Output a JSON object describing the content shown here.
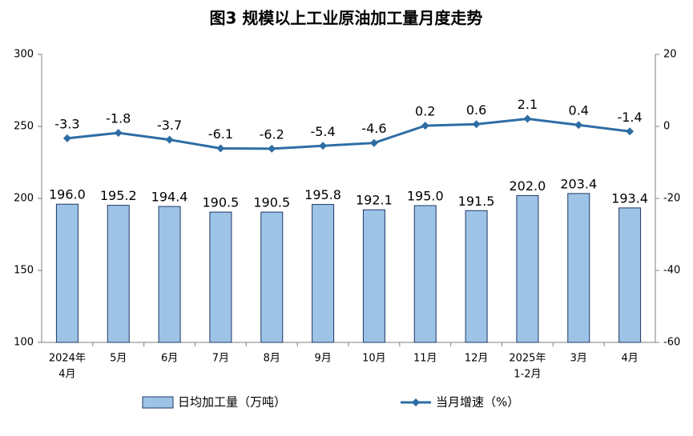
{
  "chart_data": {
    "type": "bar-line",
    "title": "图3  规模以上工业原油加工量月度走势",
    "categories": [
      [
        "2024年",
        "4月"
      ],
      "5月",
      "6月",
      "7月",
      "8月",
      "9月",
      "10月",
      "11月",
      "12月",
      [
        "2025年",
        "1-2月"
      ],
      "3月",
      "4月"
    ],
    "series": [
      {
        "name": "日均加工量（万吨）",
        "type": "bar",
        "color": "#9dc3e6",
        "edge": "#1f3864",
        "values": [
          196.0,
          195.2,
          194.4,
          190.5,
          190.5,
          195.8,
          192.1,
          195.0,
          191.5,
          202.0,
          203.4,
          193.4
        ],
        "value_labels": [
          "196.0",
          "195.2",
          "194.4",
          "190.5",
          "190.5",
          "195.8",
          "192.1",
          "195.0",
          "191.5",
          "202.0",
          "203.4",
          "193.4"
        ]
      },
      {
        "name": "当月增速（%）",
        "type": "line",
        "axis": "y2",
        "color": "#2e6da4",
        "values": [
          -3.3,
          -1.8,
          -3.7,
          -6.1,
          -6.2,
          -5.4,
          -4.6,
          0.2,
          0.6,
          2.1,
          0.4,
          -1.4
        ]
      }
    ],
    "ylim": [
      100,
      300
    ],
    "yticks": [
      100,
      150,
      200,
      250,
      300
    ],
    "y2lim": [
      -60,
      20
    ],
    "y2ticks": [
      -60,
      -40,
      -20,
      0,
      20
    ],
    "grid": false,
    "legend": "bottom"
  }
}
